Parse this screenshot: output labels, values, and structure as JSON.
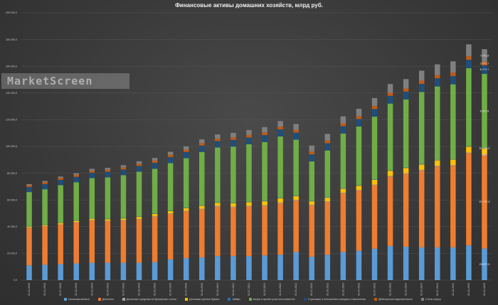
{
  "chart_data": {
    "type": "bar",
    "stacked": true,
    "title": "Финансовые активы домашних хозяйств, млрд руб.",
    "ylim": [
      0,
      200000
    ],
    "yticks": [
      "0,0",
      "20 000,0",
      "40 000,0",
      "60 000,0",
      "80 000,0",
      "100 000,0",
      "120 000,0",
      "140 000,0",
      "160 000,0",
      "180 000,0",
      "200 000,0"
    ],
    "categories": [
      "01.01.2018",
      "01.04.2018",
      "01.07.2018",
      "01.10.2018",
      "01.01.2019",
      "01.04.2019",
      "01.07.2019",
      "01.10.2019",
      "01.01.2020",
      "01.04.2020",
      "01.07.2020",
      "01.10.2020",
      "01.01.2021",
      "01.04.2021",
      "01.07.2021",
      "01.10.2021",
      "01.01.2022",
      "01.04.2022",
      "01.07.2022",
      "01.10.2022",
      "01.01.2023",
      "01.04.2023",
      "01.07.2023",
      "01.10.2023",
      "01.01.2024",
      "01.04.2024",
      "01.07.2024",
      "01.10.2024",
      "01.01.2025",
      "01.04.2025"
    ],
    "series": [
      {
        "name": "Наличная валюта",
        "color": "#5b9bd5",
        "values": [
          11000,
          11500,
          12000,
          12500,
          13000,
          13000,
          13000,
          13000,
          13500,
          15500,
          16500,
          17000,
          18000,
          18000,
          18000,
          18500,
          19000,
          21000,
          17500,
          19000,
          21000,
          22000,
          23500,
          25500,
          25000,
          24500,
          24500,
          24500,
          26000,
          23600
        ]
      },
      {
        "name": "Депозиты",
        "color": "#ed7d31",
        "values": [
          28000,
          28500,
          29500,
          30500,
          31500,
          31000,
          31500,
          32500,
          34000,
          34000,
          35000,
          36000,
          37000,
          36500,
          37000,
          37000,
          38500,
          38500,
          38500,
          39500,
          44000,
          45000,
          47500,
          52000,
          54500,
          57500,
          60500,
          61000,
          69000,
          70000
        ]
      },
      {
        "name": "Денежные средства на брокерских счетах",
        "color": "#a5a5a5",
        "values": [
          300,
          300,
          300,
          300,
          300,
          300,
          300,
          300,
          400,
          400,
          400,
          400,
          500,
          500,
          500,
          500,
          500,
          500,
          400,
          400,
          400,
          400,
          400,
          500,
          500,
          500,
          500,
          500,
          500,
          500
        ]
      },
      {
        "name": "Долговые ценные бумаги",
        "color": "#ffc000",
        "values": [
          800,
          900,
          1000,
          1100,
          1200,
          1300,
          1400,
          1500,
          1600,
          1800,
          2000,
          2200,
          2400,
          2600,
          2800,
          3000,
          3200,
          2800,
          2600,
          2800,
          3000,
          3200,
          3600,
          3800,
          3900,
          4000,
          4100,
          4200,
          4300,
          4400
        ]
      },
      {
        "name": "Займы",
        "color": "#2e6fb5",
        "values": [
          300,
          300,
          300,
          300,
          300,
          300,
          300,
          300,
          300,
          300,
          300,
          300,
          300,
          300,
          300,
          300,
          300,
          300,
          300,
          300,
          300,
          300,
          300,
          300,
          300,
          300,
          300,
          300,
          300,
          300
        ]
      },
      {
        "name": "Акции и прочие участия в капитале",
        "color": "#70ad47",
        "values": [
          25500,
          26500,
          28000,
          28500,
          30000,
          31000,
          32000,
          33500,
          33500,
          35500,
          37000,
          40000,
          41000,
          42000,
          43000,
          44000,
          46000,
          42000,
          29500,
          35000,
          41000,
          44000,
          47000,
          50000,
          51000,
          54000,
          55000,
          56000,
          58500,
          55500
        ]
      },
      {
        "name": "Страховые и пенсионные резервы и накопления",
        "color": "#1f4e79",
        "values": [
          3800,
          3900,
          4000,
          4100,
          4200,
          4200,
          4300,
          4400,
          4500,
          4600,
          4700,
          4800,
          4900,
          5000,
          5100,
          5200,
          5300,
          5300,
          5300,
          5400,
          5500,
          5600,
          5700,
          5800,
          5900,
          6000,
          6100,
          6200,
          6300,
          6400
        ]
      },
      {
        "name": "Дебиторская задолженность",
        "color": "#c55a11",
        "values": [
          1300,
          1400,
          1400,
          1500,
          1500,
          1500,
          1600,
          1600,
          1600,
          1700,
          1700,
          1800,
          1800,
          1900,
          1900,
          2000,
          2000,
          2000,
          2000,
          2100,
          2100,
          2200,
          2200,
          2300,
          2300,
          2400,
          2400,
          2500,
          2500,
          2600
        ]
      },
      {
        "name": "Счета эскроу",
        "color": "#7f7f7f",
        "values": [
          800,
          900,
          1000,
          1200,
          1300,
          1400,
          1600,
          1800,
          2000,
          2200,
          2500,
          2800,
          3100,
          3400,
          3700,
          4000,
          4200,
          4400,
          4600,
          4900,
          5200,
          5500,
          6000,
          6500,
          7000,
          7500,
          8000,
          8500,
          9000,
          9500
        ]
      }
    ],
    "last_bar_labels": [
      "23 5??,3",
      "6? ???,4",
      "?4,?",
      "?,?",
      "5? ??5,2",
      "6 0??,9",
      "6 ???,?",
      "2 5??,?",
      "?,??1,5"
    ]
  },
  "watermark": "MarketScreen"
}
